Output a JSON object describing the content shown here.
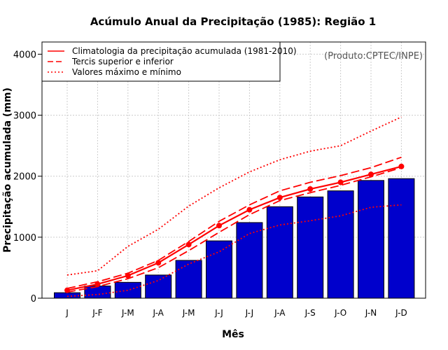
{
  "colors": {
    "bar_fill": "#0000cc",
    "bar_stroke": "#000000",
    "series_line": "#ff0000",
    "grid": "#cccccc"
  },
  "chart_data": {
    "type": "bar",
    "title": "Acúmulo Anual da Precipitação (1985): Região 1",
    "xlabel": "Mês",
    "ylabel": "Precipitação acumulada (mm)",
    "credit": "(Produto:CPTEC/INPE)",
    "ylim": [
      0,
      4200
    ],
    "yticks": [
      0,
      1000,
      2000,
      3000,
      4000
    ],
    "grid": true,
    "legend_position": "top-left",
    "categories": [
      "J",
      "J-F",
      "J-M",
      "J-A",
      "J-M",
      "J-J",
      "J-J",
      "J-A",
      "J-S",
      "J-O",
      "J-N",
      "J-D"
    ],
    "values": [
      90,
      200,
      260,
      380,
      620,
      940,
      1240,
      1500,
      1660,
      1760,
      1930,
      1960
    ],
    "series": [
      {
        "name": "Climatologia da precipitação acumulada (1981-2010)",
        "style": "solid-markers",
        "values": [
          130,
          230,
          370,
          580,
          880,
          1190,
          1450,
          1650,
          1790,
          1900,
          2030,
          2160
        ]
      },
      {
        "name": "Tercis superior e inferior (superior)",
        "style": "dashed",
        "values": [
          160,
          270,
          410,
          620,
          930,
          1260,
          1530,
          1760,
          1900,
          2010,
          2140,
          2310
        ]
      },
      {
        "name": "Tercis superior e inferior (inferior)",
        "style": "dashed",
        "values": [
          100,
          190,
          320,
          500,
          780,
          1080,
          1370,
          1600,
          1730,
          1850,
          1990,
          2140
        ]
      },
      {
        "name": "Valores máximo e mínimo (máximo)",
        "style": "dotted",
        "values": [
          380,
          450,
          850,
          1130,
          1510,
          1810,
          2070,
          2270,
          2410,
          2500,
          2740,
          2970
        ]
      },
      {
        "name": "Valores máximo e mínimo (mínimo)",
        "style": "dotted",
        "values": [
          30,
          60,
          130,
          290,
          560,
          760,
          1060,
          1200,
          1270,
          1350,
          1490,
          1530
        ]
      }
    ],
    "legend": [
      {
        "label": "Climatologia da precipitação acumulada (1981-2010)",
        "style": "solid"
      },
      {
        "label": "Tercis superior e inferior",
        "style": "dashed"
      },
      {
        "label": "Valores máximo e mínimo",
        "style": "dotted"
      }
    ]
  }
}
